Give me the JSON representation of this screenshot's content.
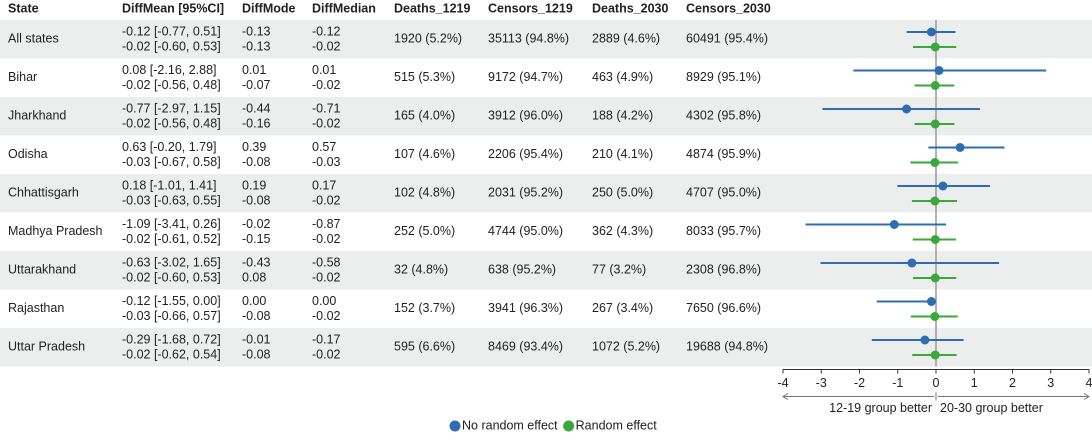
{
  "chart_data": {
    "type": "forest",
    "columns": [
      "State",
      "DiffMean [95%CI]",
      "DiffMode",
      "DiffMedian",
      "Deaths_1219",
      "Censors_1219",
      "Deaths_2030",
      "Censors_2030"
    ],
    "categories": [
      "All states",
      "Bihar",
      "Jharkhand",
      "Odisha",
      "Chhattisgarh",
      "Madhya Pradesh",
      "Uttarakhand",
      "Rajasthan",
      "Uttar Pradesh"
    ],
    "series": [
      {
        "name": "No random effect",
        "color": "#2f6db3",
        "values": [
          -0.12,
          0.08,
          -0.77,
          0.63,
          0.18,
          -1.09,
          -0.63,
          -0.12,
          -0.29
        ],
        "lower": [
          -0.77,
          -2.16,
          -2.97,
          -0.2,
          -1.01,
          -3.41,
          -3.02,
          -1.55,
          -1.68
        ],
        "upper": [
          0.51,
          2.88,
          1.15,
          1.79,
          1.41,
          0.26,
          1.65,
          0.0,
          0.72
        ],
        "value_labels": [
          "-0.12 [-0.77, 0.51]",
          "0.08 [-2.16, 2.88]",
          "-0.77 [-2.97, 1.15]",
          "0.63 [-0.20, 1.79]",
          "0.18 [-1.01, 1.41]",
          "-1.09 [-3.41, 0.26]",
          "-0.63 [-3.02, 1.65]",
          "-0.12 [-1.55, 0.00]",
          "-0.29 [-1.68, 0.72]"
        ],
        "mode": [
          "-0.13",
          "0.01",
          "-0.44",
          "0.39",
          "0.19",
          "-0.02",
          "-0.43",
          "0.00",
          "-0.01"
        ],
        "median": [
          "-0.12",
          "0.01",
          "-0.71",
          "0.57",
          "0.17",
          "-0.87",
          "-0.58",
          "0.00",
          "-0.17"
        ]
      },
      {
        "name": "Random effect",
        "color": "#3aa83a",
        "values": [
          -0.02,
          -0.02,
          -0.02,
          -0.03,
          -0.03,
          -0.02,
          -0.02,
          -0.03,
          -0.02
        ],
        "lower": [
          -0.6,
          -0.56,
          -0.56,
          -0.67,
          -0.63,
          -0.61,
          -0.6,
          -0.66,
          -0.62
        ],
        "upper": [
          0.53,
          0.48,
          0.48,
          0.58,
          0.55,
          0.52,
          0.53,
          0.57,
          0.54
        ],
        "value_labels": [
          "-0.02 [-0.60, 0.53]",
          "-0.02 [-0.56, 0.48]",
          "-0.02 [-0.56, 0.48]",
          "-0.03 [-0.67, 0.58]",
          "-0.03 [-0.63, 0.55]",
          "-0.02 [-0.61, 0.52]",
          "-0.02 [-0.60, 0.53]",
          "-0.03 [-0.66, 0.57]",
          "-0.02 [-0.62, 0.54]"
        ],
        "mode": [
          "-0.13",
          "-0.07",
          "-0.16",
          "-0.08",
          "-0.08",
          "-0.15",
          "0.08",
          "-0.08",
          "-0.08"
        ],
        "median": [
          "-0.02",
          "-0.02",
          "-0.02",
          "-0.03",
          "-0.02",
          "-0.02",
          "-0.02",
          "-0.02",
          "-0.02"
        ]
      }
    ],
    "counts": [
      [
        "1920 (5.2%)",
        "35113 (94.8%)",
        "2889 (4.6%)",
        "60491 (95.4%)"
      ],
      [
        "515 (5.3%)",
        "9172 (94.7%)",
        "463 (4.9%)",
        "8929 (95.1%)"
      ],
      [
        "165 (4.0%)",
        "3912 (96.0%)",
        "188 (4.2%)",
        "4302 (95.8%)"
      ],
      [
        "107 (4.6%)",
        "2206 (95.4%)",
        "210 (4.1%)",
        "4874 (95.9%)"
      ],
      [
        "102 (4.8%)",
        "2031 (95.2%)",
        "250 (5.0%)",
        "4707 (95.0%)"
      ],
      [
        "252 (5.0%)",
        "4744 (95.0%)",
        "362 (4.3%)",
        "8033 (95.7%)"
      ],
      [
        "32 (4.8%)",
        "638 (95.2%)",
        "77 (3.2%)",
        "2308 (96.8%)"
      ],
      [
        "152 (3.7%)",
        "3941 (96.3%)",
        "267 (3.4%)",
        "7650 (96.6%)"
      ],
      [
        "595 (6.6%)",
        "8469 (93.4%)",
        "1072 (5.2%)",
        "19688 (94.8%)"
      ]
    ],
    "xlim": [
      -4,
      4
    ],
    "xticks": [
      -4,
      -3,
      -2,
      -1,
      0,
      1,
      2,
      3,
      4
    ],
    "reference_line": 0,
    "annotations": [
      "12-19 group better",
      "20-30 group better"
    ],
    "row_shading": "#ebeeed"
  }
}
